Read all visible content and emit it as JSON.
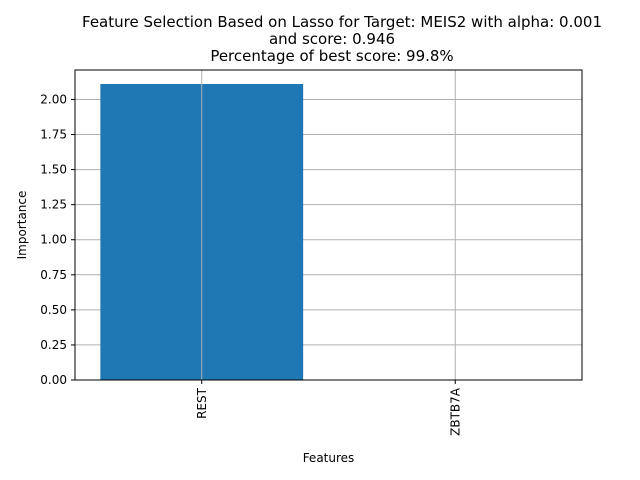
{
  "chart_data": {
    "type": "bar",
    "title_lines": [
      "Feature Selection Based on Lasso for Target: MEIS2 with alpha: 0.001",
      "and score: 0.946",
      "Percentage of best score: 99.8%"
    ],
    "xlabel": "Features",
    "ylabel": "Importance",
    "categories": [
      "REST",
      "ZBTB7A"
    ],
    "values": [
      2.11,
      0.0
    ],
    "ylim": [
      0,
      2.21
    ],
    "yticks": [
      "0.00",
      "0.25",
      "0.50",
      "0.75",
      "1.00",
      "1.25",
      "1.50",
      "1.75",
      "2.00"
    ],
    "grid": true,
    "bar_color": "#1f77b4"
  }
}
